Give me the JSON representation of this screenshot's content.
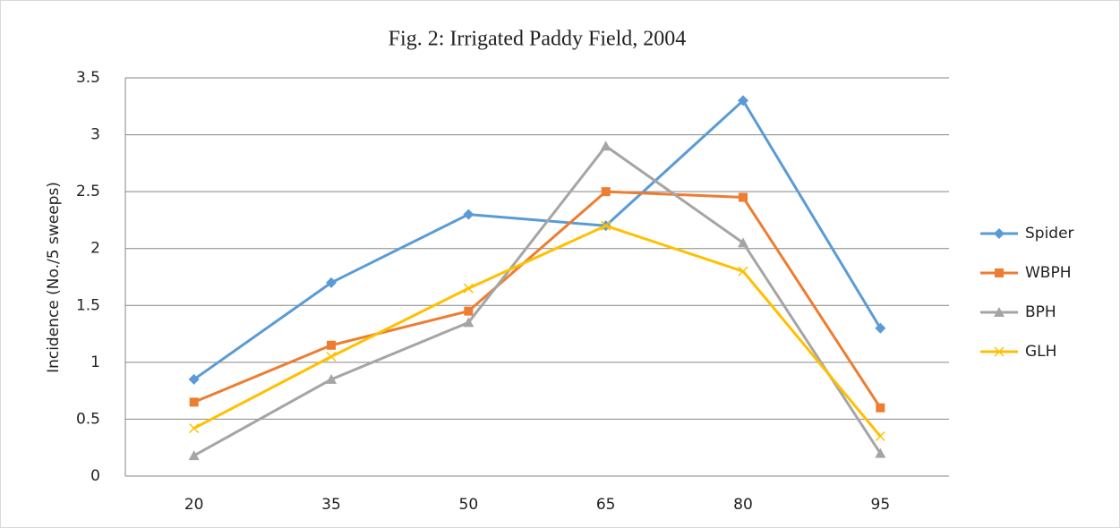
{
  "chart_data": {
    "type": "line",
    "title": "Fig. 2: Irrigated Paddy Field, 2004",
    "y_label": "Incidence (No./5 sweeps)",
    "categories": [
      "20",
      "35",
      "50",
      "65",
      "80",
      "95"
    ],
    "series": [
      {
        "name": "Spider",
        "color": "#5b9bd5",
        "marker": "diamond",
        "values": [
          0.85,
          1.7,
          2.3,
          2.2,
          3.3,
          1.3
        ]
      },
      {
        "name": "WBPH",
        "color": "#ed7d31",
        "marker": "square",
        "values": [
          0.65,
          1.15,
          1.45,
          2.5,
          2.45,
          0.6
        ]
      },
      {
        "name": "BPH",
        "color": "#a5a5a5",
        "marker": "triangle",
        "values": [
          0.18,
          0.85,
          1.35,
          2.9,
          2.05,
          0.2
        ]
      },
      {
        "name": "GLH",
        "color": "#ffc000",
        "marker": "x",
        "values": [
          0.42,
          1.05,
          1.65,
          2.2,
          1.8,
          0.35
        ]
      }
    ],
    "ylim": [
      0,
      3.5
    ],
    "yticks": [
      0,
      0.5,
      1,
      1.5,
      2,
      2.5,
      3,
      3.5
    ],
    "grid": true,
    "legend": "right"
  }
}
